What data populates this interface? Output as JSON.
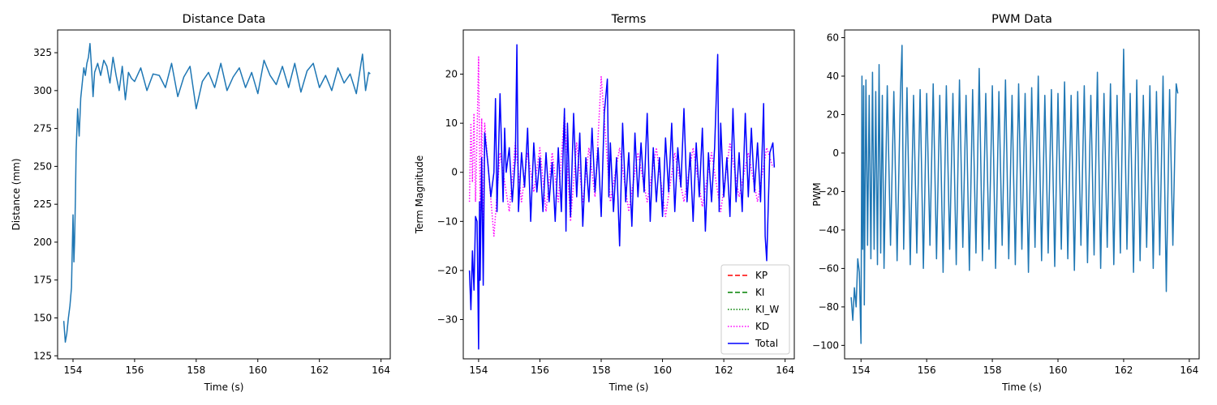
{
  "chart_data": [
    {
      "type": "line",
      "title": "Distance Data",
      "xlabel": "Time (s)",
      "ylabel": "Distance (mm)",
      "xlim": [
        153.5,
        164.3
      ],
      "ylim": [
        123,
        340
      ],
      "xticks": [
        154,
        156,
        158,
        160,
        162,
        164
      ],
      "yticks": [
        125,
        150,
        175,
        200,
        225,
        250,
        275,
        300,
        325
      ],
      "grid": false,
      "series": [
        {
          "color": "#1f77b4",
          "x": [
            153.7,
            153.75,
            153.8,
            153.85,
            153.9,
            153.95,
            154.0,
            154.03,
            154.05,
            154.08,
            154.1,
            154.15,
            154.2,
            154.25,
            154.3,
            154.35,
            154.4,
            154.45,
            154.5,
            154.55,
            154.6,
            154.65,
            154.7,
            154.8,
            154.9,
            155.0,
            155.1,
            155.2,
            155.3,
            155.4,
            155.5,
            155.6,
            155.7,
            155.8,
            155.9,
            156.0,
            156.2,
            156.4,
            156.6,
            156.8,
            157.0,
            157.2,
            157.4,
            157.6,
            157.8,
            158.0,
            158.2,
            158.4,
            158.6,
            158.8,
            159.0,
            159.2,
            159.4,
            159.6,
            159.8,
            160.0,
            160.2,
            160.4,
            160.6,
            160.8,
            161.0,
            161.2,
            161.4,
            161.6,
            161.8,
            162.0,
            162.2,
            162.4,
            162.6,
            162.8,
            163.0,
            163.2,
            163.4,
            163.5,
            163.6,
            163.65
          ],
          "y": [
            148,
            134,
            140,
            150,
            158,
            170,
            218,
            187,
            200,
            230,
            260,
            288,
            270,
            295,
            305,
            315,
            310,
            318,
            322,
            331,
            315,
            296,
            312,
            318,
            310,
            320,
            316,
            305,
            322,
            310,
            300,
            316,
            294,
            312,
            308,
            306,
            315,
            300,
            311,
            310,
            302,
            318,
            296,
            309,
            316,
            288,
            306,
            312,
            302,
            318,
            300,
            309,
            315,
            302,
            312,
            298,
            320,
            310,
            304,
            316,
            302,
            318,
            299,
            313,
            318,
            302,
            310,
            300,
            315,
            305,
            311,
            298,
            324,
            300,
            312,
            311
          ]
        }
      ]
    },
    {
      "type": "line",
      "title": "Terms",
      "xlabel": "Time (s)",
      "ylabel": "Term Magnitude",
      "xlim": [
        153.5,
        164.3
      ],
      "ylim": [
        -38,
        29
      ],
      "xticks": [
        154,
        156,
        158,
        160,
        162,
        164
      ],
      "yticks": [
        -30,
        -20,
        -10,
        0,
        10,
        20
      ],
      "grid": false,
      "legend": {
        "placement": "bottom-right",
        "entries": [
          {
            "label": "KP",
            "color": "#ff0000",
            "dash": "6,3"
          },
          {
            "label": "KI",
            "color": "#008000",
            "dash": "6,3"
          },
          {
            "label": "KI_W",
            "color": "#008000",
            "dash": "1.5,2"
          },
          {
            "label": "KD",
            "color": "#ff00ff",
            "dash": "1.5,2"
          },
          {
            "label": "Total",
            "color": "#0000ff",
            "dash": ""
          }
        ]
      },
      "series": [
        {
          "name": "KD",
          "color": "#ff00ff",
          "dash": "1.5,2",
          "x": [
            153.7,
            153.75,
            153.8,
            153.85,
            153.9,
            153.95,
            154.0,
            154.05,
            154.1,
            154.15,
            154.2,
            154.3,
            154.5,
            154.7,
            155.0,
            155.2,
            155.4,
            155.6,
            155.8,
            156.0,
            156.2,
            156.4,
            156.6,
            156.8,
            157.0,
            157.2,
            157.4,
            157.6,
            157.8,
            158.0,
            158.3,
            158.6,
            158.9,
            159.2,
            159.5,
            159.8,
            160.1,
            160.4,
            160.7,
            161.0,
            161.3,
            161.6,
            161.9,
            162.2,
            162.5,
            162.8,
            163.1,
            163.4,
            163.6
          ],
          "y": [
            -6,
            10,
            -2,
            12,
            -6,
            8,
            23.5,
            -8,
            11,
            -12,
            10,
            2,
            -13,
            4,
            -8,
            6,
            -6,
            4,
            -4,
            5,
            -8,
            4,
            -6,
            12,
            -10,
            6,
            -6,
            5,
            -5,
            19.5,
            -6,
            5,
            -8,
            4,
            -6,
            5,
            -9,
            4,
            -6,
            5,
            -7,
            4,
            -8,
            6,
            -5,
            4,
            -6,
            5,
            1
          ]
        },
        {
          "name": "Total",
          "color": "#0000ff",
          "dash": "",
          "x": [
            153.7,
            153.75,
            153.8,
            153.85,
            153.9,
            153.95,
            154.0,
            154.03,
            154.05,
            154.1,
            154.15,
            154.2,
            154.3,
            154.4,
            154.5,
            154.55,
            154.6,
            154.7,
            154.8,
            154.85,
            154.9,
            155.0,
            155.1,
            155.2,
            155.25,
            155.3,
            155.4,
            155.5,
            155.6,
            155.7,
            155.8,
            155.9,
            156.0,
            156.1,
            156.2,
            156.3,
            156.4,
            156.5,
            156.6,
            156.7,
            156.8,
            156.85,
            156.9,
            157.0,
            157.1,
            157.2,
            157.3,
            157.4,
            157.5,
            157.6,
            157.7,
            157.8,
            157.9,
            158.0,
            158.1,
            158.2,
            158.25,
            158.3,
            158.4,
            158.5,
            158.6,
            158.7,
            158.8,
            158.9,
            159.0,
            159.1,
            159.2,
            159.3,
            159.4,
            159.5,
            159.6,
            159.7,
            159.8,
            159.9,
            160.0,
            160.1,
            160.2,
            160.3,
            160.4,
            160.5,
            160.6,
            160.7,
            160.8,
            160.9,
            161.0,
            161.1,
            161.2,
            161.3,
            161.4,
            161.5,
            161.6,
            161.7,
            161.8,
            161.85,
            161.9,
            162.0,
            162.1,
            162.2,
            162.3,
            162.4,
            162.5,
            162.6,
            162.7,
            162.8,
            162.9,
            163.0,
            163.1,
            163.2,
            163.3,
            163.35,
            163.4,
            163.5,
            163.6,
            163.65
          ],
          "y": [
            -20,
            -28,
            -16,
            -24,
            -9,
            -10,
            -36,
            -6,
            -22,
            3,
            -23,
            8,
            2,
            -5,
            0,
            15,
            -8,
            16,
            -6,
            9,
            0,
            5,
            -6,
            3,
            26,
            -8,
            4,
            -3,
            9,
            -10,
            6,
            -4,
            3,
            -8,
            4,
            -6,
            2,
            -10,
            5,
            -8,
            13,
            -12,
            10,
            -9,
            12,
            -5,
            8,
            -11,
            3,
            -6,
            9,
            -4,
            5,
            -9,
            12,
            19,
            -5,
            6,
            -8,
            3,
            -15,
            10,
            -6,
            4,
            -11,
            8,
            -5,
            6,
            -4,
            12,
            -10,
            5,
            -6,
            3,
            -9,
            7,
            -4,
            10,
            -8,
            5,
            -3,
            13,
            -6,
            4,
            -10,
            6,
            -5,
            9,
            -12,
            4,
            -6,
            5,
            24,
            -8,
            10,
            -5,
            3,
            -9,
            13,
            -6,
            4,
            -8,
            12,
            -5,
            9,
            -4,
            6,
            -6,
            14,
            -13,
            -18,
            4,
            6,
            1
          ]
        }
      ]
    },
    {
      "type": "line",
      "title": "PWM Data",
      "xlabel": "Time (s)",
      "ylabel": "PWM",
      "xlim": [
        153.5,
        164.3
      ],
      "ylim": [
        -107,
        64
      ],
      "xticks": [
        154,
        156,
        158,
        160,
        162,
        164
      ],
      "yticks": [
        -100,
        -80,
        -60,
        -40,
        -20,
        0,
        20,
        40,
        60
      ],
      "grid": false,
      "series": [
        {
          "color": "#1f77b4",
          "x": [
            153.7,
            153.75,
            153.8,
            153.85,
            153.9,
            153.95,
            154.0,
            154.03,
            154.05,
            154.08,
            154.1,
            154.15,
            154.2,
            154.25,
            154.3,
            154.35,
            154.4,
            154.45,
            154.5,
            154.55,
            154.6,
            154.65,
            154.7,
            154.8,
            154.9,
            155.0,
            155.1,
            155.2,
            155.25,
            155.3,
            155.4,
            155.5,
            155.6,
            155.7,
            155.8,
            155.9,
            156.0,
            156.1,
            156.2,
            156.3,
            156.4,
            156.5,
            156.6,
            156.7,
            156.8,
            156.9,
            157.0,
            157.1,
            157.2,
            157.3,
            157.4,
            157.5,
            157.6,
            157.7,
            157.8,
            157.9,
            158.0,
            158.1,
            158.2,
            158.3,
            158.4,
            158.5,
            158.6,
            158.7,
            158.8,
            158.9,
            159.0,
            159.1,
            159.2,
            159.3,
            159.4,
            159.5,
            159.6,
            159.7,
            159.8,
            159.9,
            160.0,
            160.1,
            160.2,
            160.3,
            160.4,
            160.5,
            160.6,
            160.7,
            160.8,
            160.9,
            161.0,
            161.1,
            161.2,
            161.3,
            161.4,
            161.5,
            161.6,
            161.7,
            161.8,
            161.9,
            162.0,
            162.1,
            162.2,
            162.3,
            162.4,
            162.5,
            162.6,
            162.7,
            162.8,
            162.9,
            163.0,
            163.1,
            163.2,
            163.3,
            163.4,
            163.5,
            163.6,
            163.65
          ],
          "y": [
            -75,
            -87,
            -70,
            -80,
            -55,
            -62,
            -99,
            40,
            -50,
            35,
            -79,
            38,
            -48,
            30,
            -55,
            42,
            -50,
            32,
            -58,
            46,
            -52,
            30,
            -60,
            35,
            -48,
            32,
            -56,
            31,
            56,
            -50,
            34,
            -58,
            30,
            -52,
            33,
            -60,
            31,
            -48,
            36,
            -55,
            30,
            -62,
            35,
            -50,
            31,
            -58,
            38,
            -49,
            30,
            -61,
            33,
            -52,
            44,
            -56,
            31,
            -50,
            35,
            -60,
            32,
            -48,
            38,
            -55,
            30,
            -58,
            36,
            -50,
            31,
            -62,
            34,
            -49,
            40,
            -56,
            30,
            -52,
            33,
            -59,
            31,
            -50,
            37,
            -55,
            30,
            -61,
            32,
            -48,
            35,
            -57,
            30,
            -53,
            42,
            -60,
            31,
            -49,
            36,
            -58,
            30,
            -52,
            54,
            -50,
            31,
            -62,
            38,
            -56,
            30,
            -49,
            35,
            -60,
            32,
            -53,
            40,
            -72,
            33,
            -48,
            36,
            31
          ]
        }
      ]
    }
  ]
}
